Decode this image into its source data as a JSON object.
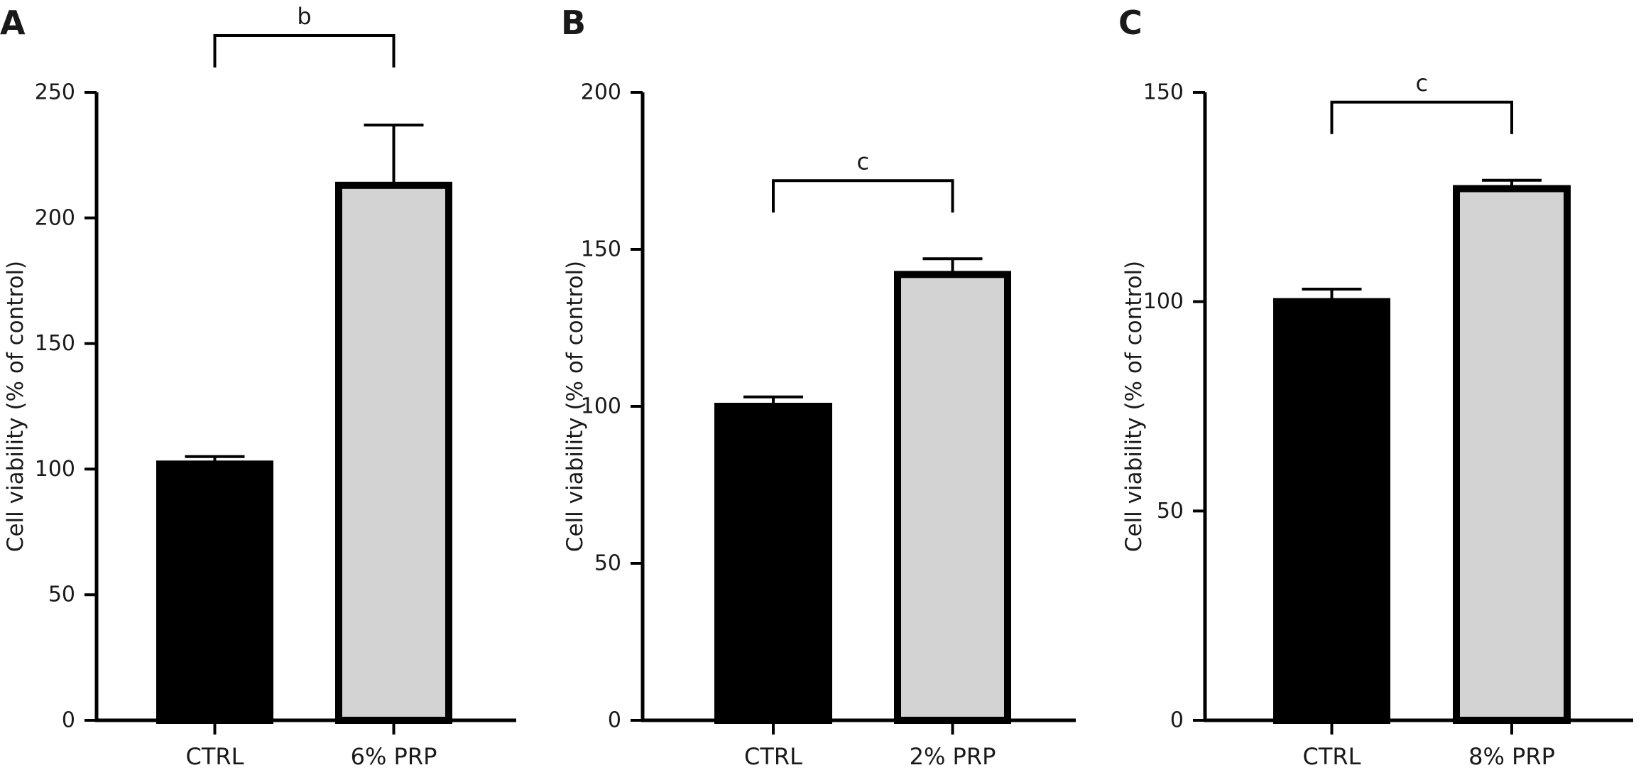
{
  "chart_data": [
    {
      "type": "bar",
      "panel": "A",
      "title": "",
      "xlabel": "",
      "ylabel": "Cell viability (% of control)",
      "ylim": [
        0,
        250
      ],
      "yticks": [
        0,
        50,
        100,
        150,
        200,
        250
      ],
      "categories": [
        "CTRL",
        "6% PRP"
      ],
      "values": [
        102,
        213
      ],
      "errors": [
        3,
        24
      ],
      "bar_colors": [
        "#000000",
        "#d3d3d3"
      ],
      "significance": "b"
    },
    {
      "type": "bar",
      "panel": "B",
      "title": "",
      "xlabel": "",
      "ylabel": "Cell viability (% of control)",
      "ylim": [
        0,
        200
      ],
      "yticks": [
        0,
        50,
        100,
        150,
        200
      ],
      "categories": [
        "CTRL",
        "2% PRP"
      ],
      "values": [
        100,
        142
      ],
      "errors": [
        3,
        5
      ],
      "bar_colors": [
        "#000000",
        "#d3d3d3"
      ],
      "significance": "c"
    },
    {
      "type": "bar",
      "panel": "C",
      "title": "",
      "xlabel": "",
      "ylabel": "Cell viability (% of control)",
      "ylim": [
        0,
        150
      ],
      "yticks": [
        0,
        50,
        100,
        150
      ],
      "categories": [
        "CTRL",
        "8% PRP"
      ],
      "values": [
        100,
        127
      ],
      "errors": [
        3,
        2
      ],
      "bar_colors": [
        "#000000",
        "#d3d3d3"
      ],
      "significance": "c"
    }
  ]
}
